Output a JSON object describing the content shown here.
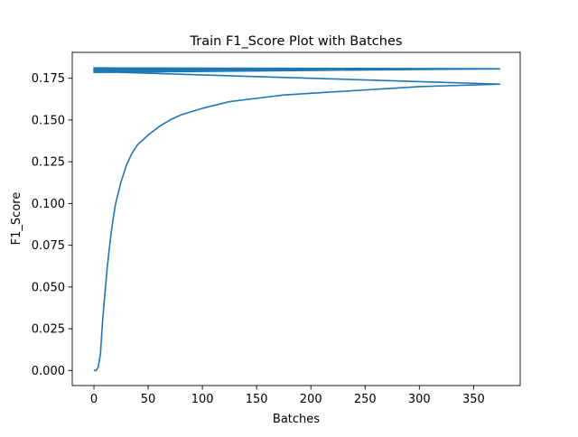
{
  "chart_data": {
    "type": "line",
    "title": "Train F1_Score Plot with Batches",
    "xlabel": "Batches",
    "ylabel": "F1_Score",
    "xlim": [
      -20,
      393
    ],
    "ylim": [
      -0.009,
      0.1905
    ],
    "x_ticks": [
      0,
      50,
      100,
      150,
      200,
      250,
      300,
      350
    ],
    "x_tick_labels": [
      "0",
      "50",
      "100",
      "150",
      "200",
      "250",
      "300",
      "350"
    ],
    "y_ticks": [
      0.0,
      0.025,
      0.05,
      0.075,
      0.1,
      0.125,
      0.15,
      0.175
    ],
    "y_tick_labels": [
      "0.000",
      "0.025",
      "0.050",
      "0.075",
      "0.100",
      "0.125",
      "0.150",
      "0.175"
    ],
    "grid": false,
    "line_color": "#1f77b4",
    "series": [
      {
        "epochs": [
          {
            "x": [
              0,
              2,
              4,
              6,
              8,
              10,
              12,
              14,
              16,
              18,
              20,
              25,
              30,
              35,
              40,
              50,
              60,
              70,
              80,
              90,
              100,
              125,
              150,
              175,
              200,
              225,
              250,
              275,
              300,
              325,
              350,
              374
            ],
            "y": [
              0.0,
              0.0,
              0.002,
              0.01,
              0.03,
              0.045,
              0.06,
              0.072,
              0.083,
              0.092,
              0.1,
              0.113,
              0.123,
              0.13,
              0.135,
              0.141,
              0.146,
              0.15,
              0.153,
              0.155,
              0.157,
              0.161,
              0.163,
              0.165,
              0.166,
              0.167,
              0.168,
              0.169,
              0.17,
              0.1705,
              0.171,
              0.1715
            ]
          },
          {
            "x": [
              0,
              1,
              2,
              5,
              10,
              20,
              50,
              100,
              150,
              200,
              250,
              300,
              350,
              374
            ],
            "y": [
              0.179,
              0.179,
              0.1795,
              0.18,
              0.18,
              0.1802,
              0.1804,
              0.1805,
              0.1805,
              0.1806,
              0.1806,
              0.1806,
              0.1806,
              0.1806
            ]
          },
          {
            "x": [
              0,
              1,
              3,
              5,
              10,
              20,
              50,
              100,
              150,
              200,
              250,
              300,
              350,
              374
            ],
            "y": [
              0.1792,
              0.1795,
              0.18,
              0.1802,
              0.1803,
              0.1804,
              0.1805,
              0.1806,
              0.1806,
              0.1806,
              0.1807,
              0.1807,
              0.1807,
              0.1807
            ]
          },
          {
            "x": [
              0,
              1,
              3,
              5,
              10,
              20,
              50,
              100,
              150,
              200,
              250,
              300,
              350,
              374
            ],
            "y": [
              0.1812,
              0.181,
              0.1808,
              0.1807,
              0.1806,
              0.1806,
              0.1806,
              0.1806,
              0.1806,
              0.1807,
              0.1807,
              0.1807,
              0.1807,
              0.1807
            ]
          },
          {
            "x": [
              0,
              1,
              3,
              5,
              10,
              20,
              50,
              100,
              150,
              200,
              250,
              300,
              350,
              374
            ],
            "y": [
              0.1785,
              0.1792,
              0.1798,
              0.18,
              0.1803,
              0.1804,
              0.1805,
              0.1806,
              0.1806,
              0.1806,
              0.1807,
              0.1807,
              0.1807,
              0.1807
            ]
          },
          {
            "x": [
              0,
              1,
              3,
              5,
              10,
              20,
              50,
              100,
              150,
              200,
              250,
              300,
              350,
              374
            ],
            "y": [
              0.1806,
              0.1806,
              0.1806,
              0.1806,
              0.1806,
              0.1806,
              0.1807,
              0.1807,
              0.1807,
              0.1807,
              0.1807,
              0.1807,
              0.1807,
              0.1807
            ]
          },
          {
            "x": [
              0,
              1,
              3,
              5,
              10,
              20,
              50,
              100,
              150,
              200,
              250,
              300,
              350,
              374
            ],
            "y": [
              0.18,
              0.1802,
              0.1804,
              0.1805,
              0.1806,
              0.1806,
              0.1806,
              0.1807,
              0.1807,
              0.1807,
              0.1807,
              0.1807,
              0.1807,
              0.1807
            ]
          }
        ]
      }
    ]
  }
}
